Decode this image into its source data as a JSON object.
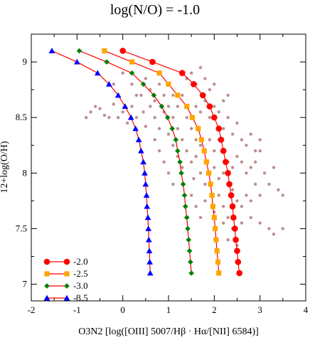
{
  "chart_data": {
    "type": "scatter",
    "title": "log(N/O) = -1.0",
    "xlabel": "O3N2 [log([OIII] 5007/Hβ · Hα/[NII] 6584)]",
    "ylabel": "12+log(O/H)",
    "xlim": [
      -2,
      4
    ],
    "ylim": [
      6.85,
      9.25
    ],
    "x_ticks": [
      "-2",
      "-1",
      "0",
      "1",
      "2",
      "3",
      "4"
    ],
    "y_ticks": [
      "7",
      "7.5",
      "8",
      "8.5",
      "9"
    ],
    "x_tick_values": [
      -2,
      -1,
      0,
      1,
      2,
      3,
      4
    ],
    "y_tick_values": [
      7,
      7.5,
      8,
      8.5,
      9
    ],
    "grid": false,
    "legend_position": "bottom-left",
    "series": [
      {
        "name": "-2.0",
        "color": "#ff0000",
        "marker": "circle",
        "points": [
          [
            0.0,
            9.1
          ],
          [
            0.65,
            9.0
          ],
          [
            1.3,
            8.9
          ],
          [
            1.55,
            8.8
          ],
          [
            1.75,
            8.7
          ],
          [
            1.9,
            8.6
          ],
          [
            2.0,
            8.5
          ],
          [
            2.1,
            8.4
          ],
          [
            2.15,
            8.3
          ],
          [
            2.2,
            8.2
          ],
          [
            2.25,
            8.1
          ],
          [
            2.3,
            8.0
          ],
          [
            2.33,
            7.9
          ],
          [
            2.37,
            7.8
          ],
          [
            2.4,
            7.7
          ],
          [
            2.42,
            7.6
          ],
          [
            2.45,
            7.5
          ],
          [
            2.47,
            7.4
          ],
          [
            2.5,
            7.3
          ],
          [
            2.52,
            7.2
          ],
          [
            2.55,
            7.1
          ]
        ]
      },
      {
        "name": "-2.5",
        "color": "#ffa500",
        "marker": "square",
        "points": [
          [
            -0.4,
            9.1
          ],
          [
            0.2,
            9.0
          ],
          [
            0.8,
            8.9
          ],
          [
            1.0,
            8.8
          ],
          [
            1.2,
            8.7
          ],
          [
            1.4,
            8.6
          ],
          [
            1.52,
            8.5
          ],
          [
            1.65,
            8.4
          ],
          [
            1.72,
            8.3
          ],
          [
            1.78,
            8.2
          ],
          [
            1.83,
            8.1
          ],
          [
            1.88,
            8.0
          ],
          [
            1.92,
            7.9
          ],
          [
            1.95,
            7.8
          ],
          [
            1.97,
            7.7
          ],
          [
            2.0,
            7.6
          ],
          [
            2.02,
            7.5
          ],
          [
            2.04,
            7.4
          ],
          [
            2.06,
            7.3
          ],
          [
            2.08,
            7.2
          ],
          [
            2.1,
            7.1
          ]
        ]
      },
      {
        "name": "-3.0",
        "color": "#008000",
        "marker": "diamond",
        "points": [
          [
            -0.95,
            9.1
          ],
          [
            -0.35,
            9.0
          ],
          [
            0.2,
            8.9
          ],
          [
            0.45,
            8.8
          ],
          [
            0.68,
            8.7
          ],
          [
            0.85,
            8.6
          ],
          [
            0.98,
            8.5
          ],
          [
            1.08,
            8.4
          ],
          [
            1.16,
            8.3
          ],
          [
            1.2,
            8.2
          ],
          [
            1.25,
            8.1
          ],
          [
            1.28,
            8.0
          ],
          [
            1.32,
            7.9
          ],
          [
            1.35,
            7.8
          ],
          [
            1.37,
            7.7
          ],
          [
            1.4,
            7.6
          ],
          [
            1.42,
            7.5
          ],
          [
            1.44,
            7.4
          ],
          [
            1.46,
            7.3
          ],
          [
            1.48,
            7.2
          ],
          [
            1.5,
            7.1
          ]
        ]
      },
      {
        "name": "-3.5",
        "color": "#0000ff",
        "marker": "triangle",
        "points": [
          [
            -1.55,
            9.1
          ],
          [
            -1.0,
            9.0
          ],
          [
            -0.55,
            8.9
          ],
          [
            -0.3,
            8.8
          ],
          [
            -0.1,
            8.7
          ],
          [
            0.05,
            8.6
          ],
          [
            0.18,
            8.5
          ],
          [
            0.28,
            8.4
          ],
          [
            0.35,
            8.3
          ],
          [
            0.4,
            8.2
          ],
          [
            0.45,
            8.1
          ],
          [
            0.48,
            8.0
          ],
          [
            0.5,
            7.9
          ],
          [
            0.52,
            7.8
          ],
          [
            0.53,
            7.7
          ],
          [
            0.55,
            7.6
          ],
          [
            0.56,
            7.5
          ],
          [
            0.57,
            7.4
          ],
          [
            0.58,
            7.3
          ],
          [
            0.59,
            7.2
          ],
          [
            0.6,
            7.1
          ]
        ]
      }
    ],
    "scatter_points": {
      "color": "#bc8f8f",
      "points": [
        [
          -0.8,
          8.5
        ],
        [
          -0.7,
          8.55
        ],
        [
          -0.6,
          8.6
        ],
        [
          -0.5,
          8.58
        ],
        [
          -0.4,
          8.52
        ],
        [
          -0.3,
          8.5
        ],
        [
          -0.2,
          8.62
        ],
        [
          -0.1,
          8.5
        ],
        [
          0.0,
          8.55
        ],
        [
          0.1,
          8.45
        ],
        [
          0.2,
          8.6
        ],
        [
          0.3,
          8.5
        ],
        [
          0.4,
          8.7
        ],
        [
          0.45,
          8.55
        ],
        [
          0.5,
          8.42
        ],
        [
          0.6,
          8.6
        ],
        [
          0.7,
          8.5
        ],
        [
          0.8,
          8.4
        ],
        [
          0.9,
          8.55
        ],
        [
          1.0,
          8.35
        ],
        [
          -0.2,
          8.8
        ],
        [
          0.0,
          8.9
        ],
        [
          0.2,
          8.8
        ],
        [
          0.3,
          8.7
        ],
        [
          0.5,
          8.85
        ],
        [
          0.6,
          8.75
        ],
        [
          0.7,
          8.65
        ],
        [
          0.8,
          8.8
        ],
        [
          0.9,
          8.7
        ],
        [
          1.0,
          8.6
        ],
        [
          1.0,
          8.8
        ],
        [
          1.1,
          8.7
        ],
        [
          1.2,
          8.6
        ],
        [
          1.3,
          8.7
        ],
        [
          1.1,
          8.5
        ],
        [
          1.2,
          8.4
        ],
        [
          1.3,
          8.3
        ],
        [
          1.4,
          8.5
        ],
        [
          1.5,
          8.4
        ],
        [
          1.6,
          8.3
        ],
        [
          1.1,
          8.25
        ],
        [
          1.2,
          8.15
        ],
        [
          1.3,
          8.05
        ],
        [
          1.4,
          8.2
        ],
        [
          1.5,
          8.1
        ],
        [
          1.6,
          8.15
        ],
        [
          1.7,
          8.25
        ],
        [
          1.8,
          8.2
        ],
        [
          1.9,
          8.3
        ],
        [
          2.0,
          8.2
        ],
        [
          1.55,
          7.95
        ],
        [
          1.7,
          8.0
        ],
        [
          1.8,
          7.9
        ],
        [
          1.9,
          8.0
        ],
        [
          2.0,
          8.05
        ],
        [
          2.1,
          7.95
        ],
        [
          2.2,
          8.0
        ],
        [
          2.3,
          8.1
        ],
        [
          2.4,
          8.05
        ],
        [
          2.5,
          8.15
        ],
        [
          2.6,
          8.1
        ],
        [
          2.7,
          8.0
        ],
        [
          2.8,
          8.05
        ],
        [
          2.9,
          8.1
        ],
        [
          3.0,
          8.2
        ],
        [
          3.1,
          8.0
        ],
        [
          3.2,
          7.9
        ],
        [
          3.3,
          8.05
        ],
        [
          3.4,
          7.85
        ],
        [
          3.5,
          7.8
        ],
        [
          2.1,
          8.3
        ],
        [
          2.2,
          8.4
        ],
        [
          2.3,
          8.5
        ],
        [
          2.4,
          8.35
        ],
        [
          2.5,
          8.45
        ],
        [
          2.6,
          8.3
        ],
        [
          2.7,
          8.25
        ],
        [
          2.8,
          8.35
        ],
        [
          2.9,
          8.2
        ],
        [
          3.0,
          8.3
        ],
        [
          1.6,
          8.6
        ],
        [
          1.7,
          8.55
        ],
        [
          1.8,
          8.65
        ],
        [
          1.9,
          8.5
        ],
        [
          2.0,
          8.6
        ],
        [
          2.1,
          8.55
        ],
        [
          2.2,
          8.65
        ],
        [
          2.3,
          8.7
        ],
        [
          1.4,
          8.85
        ],
        [
          1.5,
          8.9
        ],
        [
          1.6,
          8.8
        ],
        [
          1.7,
          8.95
        ],
        [
          1.8,
          8.85
        ],
        [
          1.9,
          8.75
        ],
        [
          2.0,
          8.8
        ],
        [
          1.5,
          7.8
        ],
        [
          1.6,
          7.7
        ],
        [
          1.7,
          7.6
        ],
        [
          1.8,
          7.75
        ],
        [
          2.0,
          7.65
        ],
        [
          2.1,
          7.8
        ],
        [
          2.2,
          7.7
        ],
        [
          2.3,
          7.6
        ],
        [
          2.4,
          7.85
        ],
        [
          2.5,
          7.75
        ],
        [
          2.6,
          7.7
        ],
        [
          2.7,
          7.8
        ],
        [
          2.8,
          7.75
        ],
        [
          2.9,
          7.9
        ],
        [
          3.0,
          7.8
        ],
        [
          2.2,
          7.55
        ],
        [
          2.4,
          7.5
        ],
        [
          2.6,
          7.55
        ],
        [
          2.8,
          7.6
        ],
        [
          3.0,
          7.55
        ],
        [
          3.2,
          7.5
        ],
        [
          3.3,
          7.45
        ],
        [
          3.5,
          7.5
        ],
        [
          2.3,
          7.4
        ],
        [
          2.5,
          7.35
        ],
        [
          1.0,
          8.0
        ],
        [
          1.1,
          7.9
        ],
        [
          0.9,
          8.1
        ],
        [
          0.8,
          8.2
        ],
        [
          0.7,
          8.3
        ]
      ]
    }
  }
}
